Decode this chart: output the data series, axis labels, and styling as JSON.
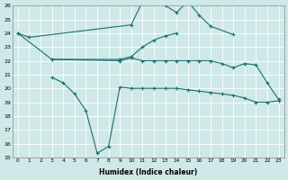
{
  "xlabel": "Humidex (Indice chaleur)",
  "bg_color": "#cfe8e8",
  "grid_color": "#ffffff",
  "line_color": "#1a7070",
  "xlim": [
    -0.5,
    23.5
  ],
  "ylim": [
    15,
    26
  ],
  "xticks": [
    0,
    1,
    2,
    3,
    4,
    5,
    6,
    7,
    8,
    9,
    10,
    11,
    12,
    13,
    14,
    15,
    16,
    17,
    18,
    19,
    20,
    21,
    22,
    23
  ],
  "yticks": [
    15,
    16,
    17,
    18,
    19,
    20,
    21,
    22,
    23,
    24,
    25,
    26
  ],
  "s1_x": [
    0,
    1,
    10,
    11,
    12,
    13,
    14,
    15,
    16,
    17,
    19
  ],
  "s1_y": [
    24.0,
    23.7,
    24.6,
    26.3,
    26.3,
    26.0,
    25.5,
    26.3,
    25.3,
    24.5,
    23.9
  ],
  "s2_x": [
    0,
    3,
    9,
    10,
    11,
    12,
    13,
    14
  ],
  "s2_y": [
    24.0,
    22.1,
    22.1,
    22.3,
    23.0,
    23.5,
    23.8,
    24.0
  ],
  "s3_x": [
    3,
    9,
    10,
    11,
    12,
    13,
    14,
    15,
    16,
    17,
    18,
    19,
    20,
    21,
    22,
    23
  ],
  "s3_y": [
    22.1,
    22.0,
    22.2,
    22.0,
    22.0,
    22.0,
    22.0,
    22.0,
    22.0,
    22.0,
    21.8,
    21.5,
    21.8,
    21.7,
    20.4,
    19.2
  ],
  "s4_x": [
    3,
    4,
    5,
    6,
    7,
    8,
    9,
    10,
    11,
    12,
    13,
    14,
    15,
    16,
    17,
    18,
    19,
    20,
    21,
    22,
    23
  ],
  "s4_y": [
    20.8,
    20.4,
    19.6,
    18.4,
    15.3,
    15.8,
    20.1,
    20.0,
    20.0,
    20.0,
    20.0,
    20.0,
    19.9,
    19.8,
    19.7,
    19.6,
    19.5,
    19.3,
    19.0,
    19.0,
    19.1
  ]
}
